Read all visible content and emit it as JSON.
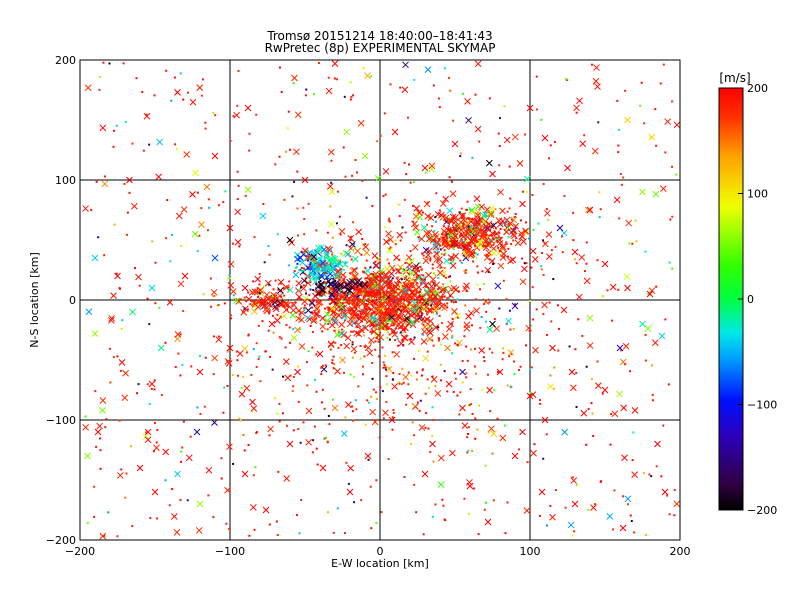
{
  "chart_data": {
    "type": "scatter",
    "title": "Tromsø 20151214 18:40:00–18:41:43",
    "subtitle": "RwPretec (8p) EXPERIMENTAL SKYMAP",
    "xlabel": "E-W location [km]",
    "ylabel": "N-S location [km]",
    "xlim": [
      -200,
      200
    ],
    "ylim": [
      -200,
      200
    ],
    "xticks": [
      -200,
      -100,
      0,
      100,
      200
    ],
    "yticks": [
      -200,
      -100,
      0,
      100,
      200
    ],
    "grid": true,
    "marker_types": [
      "x",
      "dot"
    ],
    "colorbar": {
      "label": "[m/s]",
      "range": [
        -200,
        200
      ],
      "ticks": [
        200,
        100,
        0,
        -100,
        -200
      ],
      "colormap": "rainbow-black-blue-cyan-green-yellow-red"
    },
    "clusters": [
      {
        "name": "central",
        "center": [
          0,
          0
        ],
        "spread": [
          25,
          15
        ],
        "dominant_velocity": 200
      },
      {
        "name": "northeast",
        "center": [
          60,
          55
        ],
        "spread": [
          20,
          12
        ],
        "dominant_velocity": 200
      },
      {
        "name": "northwest-cyan",
        "center": [
          -40,
          28
        ],
        "spread": [
          8,
          8
        ],
        "dominant_velocity": -30
      },
      {
        "name": "west",
        "center": [
          -75,
          0
        ],
        "spread": [
          10,
          6
        ],
        "dominant_velocity": 200
      }
    ],
    "points": [
      {
        "x": -135,
        "y": 173,
        "v": 200,
        "m": "x"
      },
      {
        "x": -30,
        "y": 197,
        "v": 200,
        "m": "x"
      },
      {
        "x": 17,
        "y": 196,
        "v": -150,
        "m": "x"
      },
      {
        "x": 32,
        "y": 192,
        "v": -60,
        "m": "x"
      },
      {
        "x": 100,
        "y": 160,
        "v": 200,
        "m": "x"
      },
      {
        "x": 165,
        "y": 150,
        "v": 110,
        "m": "x"
      },
      {
        "x": 198,
        "y": 146,
        "v": 200,
        "m": "x"
      },
      {
        "x": 133,
        "y": 166,
        "v": 200,
        "m": "x"
      },
      {
        "x": -57,
        "y": 185,
        "v": 180,
        "m": "x"
      },
      {
        "x": -88,
        "y": 160,
        "v": 200,
        "m": "x"
      },
      {
        "x": -167,
        "y": 100,
        "v": 200,
        "m": "x"
      },
      {
        "x": -190,
        "y": 35,
        "v": -40,
        "m": "x"
      },
      {
        "x": -175,
        "y": 20,
        "v": 200,
        "m": "x"
      },
      {
        "x": -152,
        "y": 10,
        "v": -40,
        "m": "x"
      },
      {
        "x": -140,
        "y": -2,
        "v": 200,
        "m": "x"
      },
      {
        "x": -190,
        "y": -28,
        "v": 60,
        "m": "x"
      },
      {
        "x": -172,
        "y": -52,
        "v": 200,
        "m": "x"
      },
      {
        "x": -152,
        "y": -70,
        "v": 200,
        "m": "x"
      },
      {
        "x": -185,
        "y": -92,
        "v": 50,
        "m": "x"
      },
      {
        "x": -188,
        "y": -110,
        "v": 200,
        "m": "x"
      },
      {
        "x": -160,
        "y": -140,
        "v": 200,
        "m": "x"
      },
      {
        "x": -122,
        "y": -110,
        "v": -130,
        "m": "x"
      },
      {
        "x": -120,
        "y": -170,
        "v": 60,
        "m": "x"
      },
      {
        "x": -90,
        "y": -145,
        "v": 200,
        "m": "x"
      },
      {
        "x": -76,
        "y": -175,
        "v": 200,
        "m": "x"
      },
      {
        "x": -60,
        "y": -120,
        "v": 200,
        "m": "x"
      },
      {
        "x": -38,
        "y": -140,
        "v": 200,
        "m": "x"
      },
      {
        "x": -20,
        "y": -160,
        "v": 200,
        "m": "x"
      },
      {
        "x": 30,
        "y": -145,
        "v": 200,
        "m": "x"
      },
      {
        "x": 60,
        "y": -155,
        "v": 200,
        "m": "x"
      },
      {
        "x": 72,
        "y": -185,
        "v": 200,
        "m": "x"
      },
      {
        "x": 90,
        "y": -130,
        "v": 200,
        "m": "x"
      },
      {
        "x": 108,
        "y": -160,
        "v": 200,
        "m": "x"
      },
      {
        "x": 130,
        "y": -170,
        "v": 200,
        "m": "x"
      },
      {
        "x": 162,
        "y": -190,
        "v": 200,
        "m": "x"
      },
      {
        "x": 190,
        "y": -160,
        "v": 200,
        "m": "x"
      },
      {
        "x": 185,
        "y": -120,
        "v": 200,
        "m": "x"
      },
      {
        "x": 170,
        "y": -92,
        "v": 200,
        "m": "x"
      },
      {
        "x": 150,
        "y": -75,
        "v": 200,
        "m": "x"
      },
      {
        "x": 128,
        "y": -60,
        "v": 200,
        "m": "x"
      },
      {
        "x": 160,
        "y": -40,
        "v": -120,
        "m": "x"
      },
      {
        "x": 175,
        "y": -20,
        "v": -20,
        "m": "x"
      },
      {
        "x": 188,
        "y": -30,
        "v": -40,
        "m": "x"
      },
      {
        "x": 165,
        "y": 10,
        "v": 200,
        "m": "x"
      },
      {
        "x": 180,
        "y": 5,
        "v": 200,
        "m": "x"
      },
      {
        "x": 150,
        "y": 30,
        "v": 200,
        "m": "x"
      },
      {
        "x": 140,
        "y": 75,
        "v": 200,
        "m": "x"
      },
      {
        "x": 175,
        "y": 90,
        "v": 60,
        "m": "x"
      },
      {
        "x": 125,
        "y": 110,
        "v": 200,
        "m": "x"
      },
      {
        "x": 110,
        "y": 135,
        "v": 200,
        "m": "x"
      },
      {
        "x": -110,
        "y": 120,
        "v": 200,
        "m": "x"
      },
      {
        "x": -125,
        "y": 88,
        "v": 200,
        "m": "x"
      },
      {
        "x": -100,
        "y": 60,
        "v": 200,
        "m": "x"
      },
      {
        "x": -110,
        "y": 35,
        "v": -80,
        "m": "x"
      },
      {
        "x": -130,
        "y": 20,
        "v": 200,
        "m": "x"
      },
      {
        "x": -88,
        "y": 92,
        "v": 60,
        "m": "x"
      },
      {
        "x": -78,
        "y": 70,
        "v": -40,
        "m": "x"
      },
      {
        "x": -60,
        "y": 50,
        "v": -200,
        "m": "x"
      },
      {
        "x": -165,
        "y": -10,
        "v": -10,
        "m": "x"
      },
      {
        "x": -100,
        "y": -40,
        "v": 200,
        "m": "x"
      },
      {
        "x": -120,
        "y": -60,
        "v": 200,
        "m": "x"
      },
      {
        "x": -85,
        "y": -85,
        "v": 200,
        "m": "x"
      },
      {
        "x": -55,
        "y": -60,
        "v": 200,
        "m": "x"
      },
      {
        "x": -30,
        "y": -90,
        "v": 150,
        "m": "x"
      },
      {
        "x": 20,
        "y": -80,
        "v": 200,
        "m": "x"
      },
      {
        "x": 55,
        "y": -90,
        "v": 200,
        "m": "x"
      },
      {
        "x": 80,
        "y": -60,
        "v": 200,
        "m": "x"
      },
      {
        "x": 100,
        "y": -80,
        "v": 200,
        "m": "x"
      },
      {
        "x": 115,
        "y": -40,
        "v": 200,
        "m": "x"
      },
      {
        "x": 95,
        "y": -110,
        "v": 200,
        "m": "x"
      },
      {
        "x": 45,
        "y": -40,
        "v": 150,
        "m": "x"
      },
      {
        "x": 75,
        "y": -20,
        "v": -200,
        "m": "x"
      },
      {
        "x": 90,
        "y": -5,
        "v": -130,
        "m": "x"
      },
      {
        "x": 140,
        "y": -15,
        "v": 60,
        "m": "x"
      },
      {
        "x": 110,
        "y": -100,
        "v": 200,
        "m": "x"
      },
      {
        "x": -90,
        "y": 10,
        "v": 200,
        "m": "x"
      },
      {
        "x": -72,
        "y": -20,
        "v": 200,
        "m": "x"
      },
      {
        "x": 30,
        "y": 110,
        "v": 200,
        "m": "x"
      },
      {
        "x": 50,
        "y": 130,
        "v": 200,
        "m": "x"
      },
      {
        "x": 10,
        "y": 140,
        "v": 200,
        "m": "x"
      },
      {
        "x": -10,
        "y": 120,
        "v": 60,
        "m": "x"
      },
      {
        "x": -50,
        "y": 100,
        "v": 200,
        "m": "x"
      },
      {
        "x": 75,
        "y": 105,
        "v": 200,
        "m": "x"
      },
      {
        "x": 95,
        "y": 80,
        "v": 200,
        "m": "x"
      },
      {
        "x": 120,
        "y": 60,
        "v": -130,
        "m": "x"
      },
      {
        "x": 130,
        "y": 40,
        "v": 200,
        "m": "x"
      },
      {
        "x": -55,
        "y": -25,
        "v": 150,
        "m": "x"
      },
      {
        "x": -40,
        "y": -45,
        "v": 200,
        "m": "x"
      },
      {
        "x": 55,
        "y": -60,
        "v": -130,
        "m": "x"
      },
      {
        "x": 35,
        "y": -120,
        "v": 200,
        "m": "x"
      },
      {
        "x": 8,
        "y": -100,
        "v": 200,
        "m": "x"
      },
      {
        "x": -8,
        "y": -130,
        "v": 200,
        "m": "x"
      },
      {
        "x": -150,
        "y": -160,
        "v": 200,
        "m": "x"
      },
      {
        "x": -195,
        "y": -130,
        "v": 60,
        "m": "x"
      },
      {
        "x": -135,
        "y": -145,
        "v": -40,
        "m": "x"
      }
    ]
  }
}
